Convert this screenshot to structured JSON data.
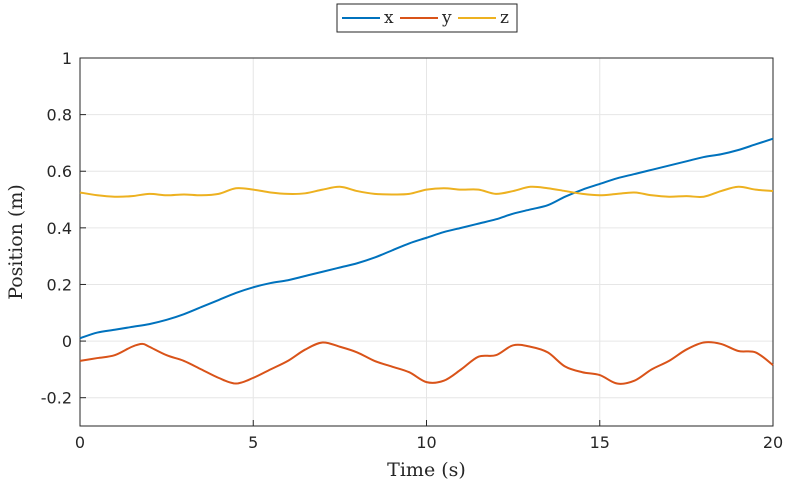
{
  "chart_data": {
    "type": "line",
    "xlabel": "Time (s)",
    "ylabel": "Position (m)",
    "xlim": [
      0,
      20
    ],
    "ylim": [
      -0.3,
      1
    ],
    "xticks": [
      0,
      5,
      10,
      15,
      20
    ],
    "yticks": [
      -0.2,
      0,
      0.2,
      0.4,
      0.6,
      0.8,
      1
    ],
    "ytick_labels": [
      "-0.2",
      "0",
      "0.2",
      "0.4",
      "0.6",
      "0.8",
      "1"
    ],
    "grid": true,
    "legend": {
      "position": "top-center",
      "orientation": "horizontal"
    },
    "series": [
      {
        "name": "x",
        "color": "#0072BD",
        "x": [
          0,
          0.5,
          1,
          1.5,
          2,
          2.5,
          3,
          3.5,
          4,
          4.5,
          5,
          5.5,
          6,
          6.5,
          7,
          7.5,
          8,
          8.5,
          9,
          9.5,
          10,
          10.5,
          11,
          11.5,
          12,
          12.5,
          13,
          13.5,
          14,
          14.5,
          15,
          15.5,
          16,
          16.5,
          17,
          17.5,
          18,
          18.5,
          19,
          19.5,
          20
        ],
        "y": [
          0.01,
          0.03,
          0.04,
          0.05,
          0.06,
          0.075,
          0.095,
          0.12,
          0.145,
          0.17,
          0.19,
          0.205,
          0.215,
          0.23,
          0.245,
          0.26,
          0.275,
          0.295,
          0.32,
          0.345,
          0.365,
          0.385,
          0.4,
          0.415,
          0.43,
          0.45,
          0.465,
          0.48,
          0.51,
          0.535,
          0.555,
          0.575,
          0.59,
          0.605,
          0.62,
          0.635,
          0.65,
          0.66,
          0.675,
          0.695,
          0.715
        ]
      },
      {
        "name": "y",
        "color": "#D95319",
        "x": [
          0,
          0.5,
          1,
          1.5,
          1.8,
          2,
          2.5,
          3,
          3.5,
          4,
          4.5,
          5,
          5.5,
          6,
          6.5,
          7,
          7.5,
          8,
          8.5,
          9,
          9.5,
          10,
          10.5,
          11,
          11.5,
          12,
          12.5,
          13,
          13.5,
          14,
          14.5,
          15,
          15.5,
          16,
          16.5,
          17,
          17.5,
          18,
          18.5,
          19,
          19.5,
          20
        ],
        "y": [
          -0.07,
          -0.06,
          -0.05,
          -0.02,
          -0.01,
          -0.02,
          -0.05,
          -0.07,
          -0.1,
          -0.13,
          -0.15,
          -0.13,
          -0.1,
          -0.07,
          -0.03,
          -0.005,
          -0.02,
          -0.04,
          -0.07,
          -0.09,
          -0.11,
          -0.145,
          -0.14,
          -0.1,
          -0.055,
          -0.05,
          -0.015,
          -0.02,
          -0.04,
          -0.09,
          -0.11,
          -0.12,
          -0.15,
          -0.14,
          -0.1,
          -0.07,
          -0.03,
          -0.005,
          -0.01,
          -0.035,
          -0.04,
          -0.085
        ]
      },
      {
        "name": "z",
        "color": "#EDB120",
        "x": [
          0,
          0.5,
          1,
          1.5,
          2,
          2.5,
          3,
          3.5,
          4,
          4.5,
          5,
          5.5,
          6,
          6.5,
          7,
          7.5,
          8,
          8.5,
          9,
          9.5,
          10,
          10.5,
          11,
          11.5,
          12,
          12.5,
          13,
          13.5,
          14,
          14.5,
          15,
          15.5,
          16,
          16.5,
          17,
          17.5,
          18,
          18.5,
          19,
          19.5,
          20
        ],
        "y": [
          0.525,
          0.515,
          0.51,
          0.512,
          0.52,
          0.515,
          0.518,
          0.515,
          0.52,
          0.54,
          0.535,
          0.525,
          0.52,
          0.522,
          0.535,
          0.545,
          0.53,
          0.52,
          0.518,
          0.52,
          0.535,
          0.54,
          0.535,
          0.535,
          0.52,
          0.53,
          0.545,
          0.54,
          0.53,
          0.52,
          0.515,
          0.52,
          0.525,
          0.515,
          0.51,
          0.512,
          0.51,
          0.53,
          0.545,
          0.535,
          0.53
        ]
      }
    ]
  }
}
